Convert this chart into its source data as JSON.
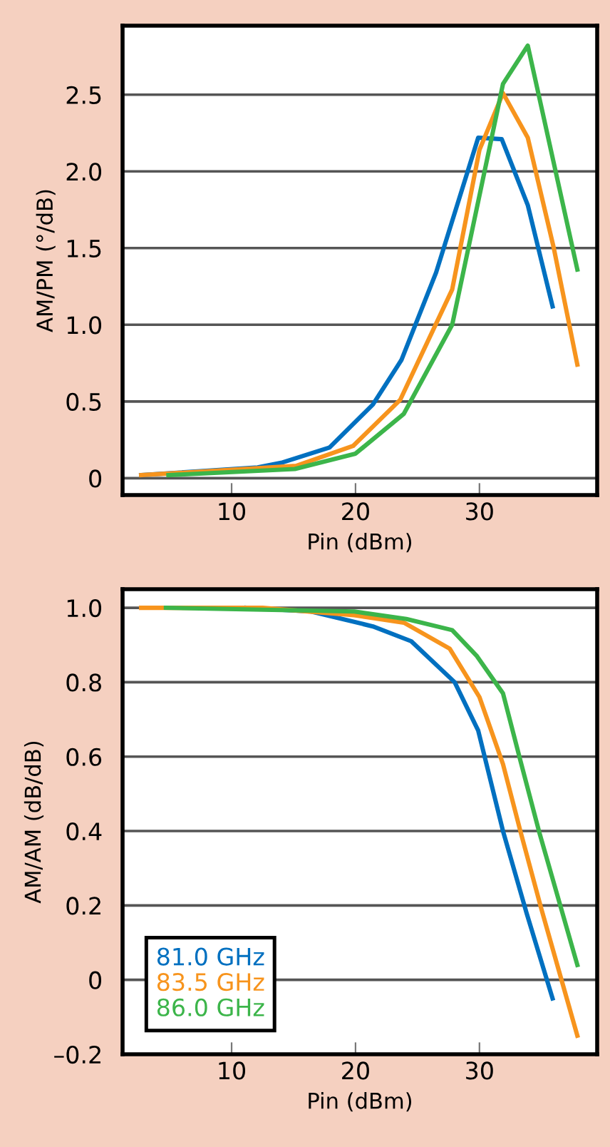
{
  "chart_data": [
    {
      "type": "line",
      "xlabel": "Pin (dBm)",
      "ylabel": "AM/PM (°/dB)",
      "xlim": [
        1.2,
        39.5
      ],
      "xticks": [
        10,
        20,
        30
      ],
      "ylim": [
        -0.11,
        2.95
      ],
      "yticks": [
        0,
        0.5,
        {
          "value": 1.0,
          "label": "1.0"
        },
        1.5,
        {
          "value": 2.0,
          "label": "2.0"
        },
        2.5
      ],
      "grid": "y",
      "legend": false,
      "marker": "none",
      "line_style": "solid",
      "series": [
        {
          "color": "#0070c0",
          "x": [
            2.7,
            12.1,
            14,
            17.9,
            21.4,
            23.7,
            26.5,
            29.9,
            31.8,
            33.9,
            35.9
          ],
          "values": [
            0.02,
            0.07,
            0.1,
            0.2,
            0.48,
            0.77,
            1.34,
            2.22,
            2.21,
            1.78,
            1.12
          ]
        },
        {
          "color": "#f7941d",
          "x": [
            2.7,
            15.2,
            19.8,
            23.6,
            27.8,
            30,
            31.9,
            33.9,
            36,
            37.9
          ],
          "values": [
            0.02,
            0.08,
            0.21,
            0.51,
            1.23,
            2.14,
            2.51,
            2.22,
            1.5,
            0.74
          ]
        },
        {
          "color": "#3cb54a",
          "x": [
            4.9,
            15.1,
            20,
            23.9,
            27.8,
            31.9,
            33.9,
            37.9
          ],
          "values": [
            0.02,
            0.06,
            0.16,
            0.42,
            1.0,
            2.57,
            2.82,
            1.36
          ]
        }
      ]
    },
    {
      "type": "line",
      "xlabel": "Pin (dBm)",
      "ylabel": "AM/AM (dB/dB)",
      "xlim": [
        1.2,
        39.5
      ],
      "xticks": [
        10,
        20,
        30
      ],
      "ylim": [
        -0.2,
        1.05
      ],
      "yticks": [
        {
          "value": -0.2,
          "label": "–0.2"
        },
        0,
        0.2,
        0.4,
        0.6,
        0.8,
        {
          "value": 1.0,
          "label": "1.0"
        }
      ],
      "grid": "y",
      "legend": "bottom left",
      "marker": "none",
      "line_style": "solid",
      "series": [
        {
          "name": "81.0 GHz",
          "color": "#0070c0",
          "x": [
            11.2,
            16.4,
            21.4,
            24.5,
            28,
            29.9,
            31.9,
            33.8,
            35.9
          ],
          "values": [
            1.0,
            0.99,
            0.95,
            0.91,
            0.8,
            0.67,
            0.4,
            0.18,
            -0.05
          ]
        },
        {
          "name": "83.5 GHz",
          "color": "#f7941d",
          "x": [
            2.7,
            12.5,
            19.9,
            23.9,
            27.6,
            30,
            31.9,
            33.3,
            35,
            37.9
          ],
          "values": [
            1.0,
            1.0,
            0.98,
            0.96,
            0.89,
            0.76,
            0.58,
            0.4,
            0.19,
            -0.15
          ]
        },
        {
          "name": "86.0 GHz",
          "color": "#3cb54a",
          "x": [
            4.7,
            19.9,
            24.1,
            27.8,
            29.8,
            31.9,
            33.3,
            34.8,
            37.9
          ],
          "values": [
            1.0,
            0.99,
            0.97,
            0.94,
            0.87,
            0.77,
            0.59,
            0.4,
            0.04
          ]
        }
      ]
    }
  ]
}
